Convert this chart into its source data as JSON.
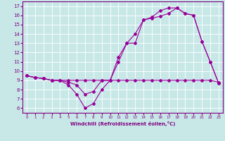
{
  "line1_x": [
    0,
    1,
    2,
    3,
    4,
    5,
    6,
    7,
    8,
    9,
    10,
    11,
    12,
    13,
    14,
    15,
    16,
    17,
    18,
    19,
    20,
    21,
    22,
    23
  ],
  "line1_y": [
    9.5,
    9.3,
    9.2,
    9.0,
    9.0,
    8.5,
    7.5,
    6.0,
    6.5,
    8.0,
    9.0,
    11.0,
    13.0,
    13.0,
    15.5,
    15.7,
    15.9,
    16.2,
    16.8,
    16.2,
    16.0,
    13.2,
    11.0,
    8.7
  ],
  "line2_x": [
    0,
    1,
    2,
    3,
    4,
    5,
    6,
    7,
    8,
    9,
    10,
    11,
    12,
    13,
    14,
    15,
    16,
    17,
    18,
    19,
    20,
    21,
    22,
    23
  ],
  "line2_y": [
    9.5,
    9.3,
    9.2,
    9.0,
    9.0,
    9.0,
    9.0,
    9.0,
    9.0,
    9.0,
    9.0,
    9.0,
    9.0,
    9.0,
    9.0,
    9.0,
    9.0,
    9.0,
    9.0,
    9.0,
    9.0,
    9.0,
    9.0,
    8.8
  ],
  "line3_x": [
    0,
    1,
    2,
    3,
    4,
    5,
    6,
    7,
    8,
    9,
    10,
    11,
    12,
    13,
    14,
    15,
    16,
    17,
    18,
    19,
    20,
    21,
    22,
    23
  ],
  "line3_y": [
    9.5,
    9.3,
    9.2,
    9.0,
    9.0,
    8.8,
    8.5,
    7.5,
    7.8,
    9.0,
    9.0,
    11.5,
    13.0,
    14.0,
    15.5,
    15.8,
    16.5,
    16.8,
    16.8,
    16.2,
    16.0,
    13.2,
    11.0,
    8.7
  ],
  "line_color": "#990099",
  "marker": "D",
  "marker_size": 2,
  "xlim": [
    -0.5,
    23.5
  ],
  "ylim": [
    5.5,
    17.5
  ],
  "yticks": [
    6,
    7,
    8,
    9,
    10,
    11,
    12,
    13,
    14,
    15,
    16,
    17
  ],
  "xticks": [
    0,
    1,
    2,
    3,
    4,
    5,
    6,
    7,
    8,
    9,
    10,
    11,
    12,
    13,
    14,
    15,
    16,
    17,
    18,
    19,
    20,
    21,
    22,
    23
  ],
  "xlabel": "Windchill (Refroidissement éolien,°C)",
  "bg_color": "#c8e8e8",
  "grid_color": "#ffffff",
  "text_color": "#800080",
  "lw": 0.8
}
